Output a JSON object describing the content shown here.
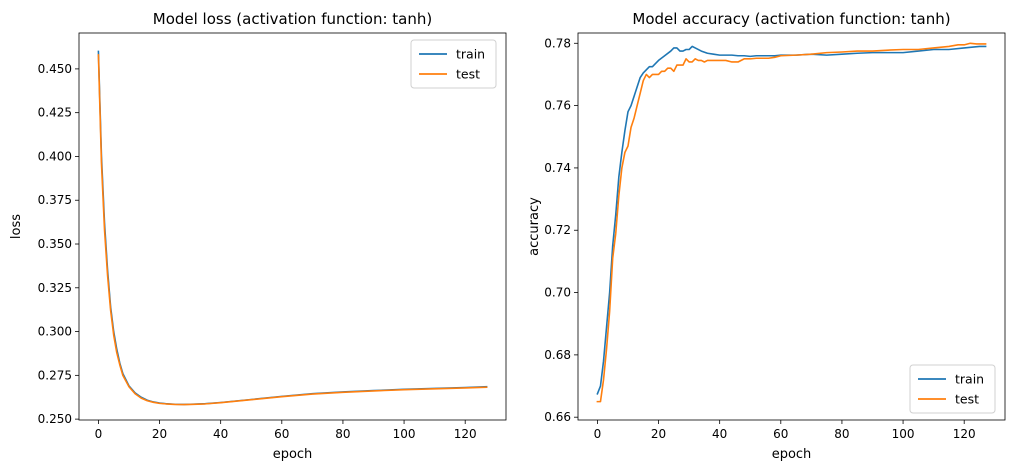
{
  "chart_data": [
    {
      "type": "line",
      "title": "Model loss (activation function: tanh)",
      "xlabel": "epoch",
      "ylabel": "loss",
      "xlim": [
        -6.35,
        133.35
      ],
      "ylim": [
        0.2495,
        0.4705
      ],
      "xticks": [
        0,
        20,
        40,
        60,
        80,
        100,
        120
      ],
      "yticks": [
        0.25,
        0.275,
        0.3,
        0.325,
        0.35,
        0.375,
        0.4,
        0.425,
        0.45
      ],
      "ytick_labels": [
        "0.250",
        "0.275",
        "0.300",
        "0.325",
        "0.350",
        "0.375",
        "0.400",
        "0.425",
        "0.450"
      ],
      "grid": false,
      "legend_position": "top-right",
      "series": [
        {
          "name": "train",
          "color": "#1f77b4",
          "x": [
            0,
            1,
            2,
            3,
            4,
            5,
            6,
            7,
            8,
            10,
            12,
            14,
            16,
            18,
            20,
            22,
            25,
            28,
            30,
            35,
            40,
            50,
            60,
            70,
            80,
            90,
            100,
            110,
            120,
            127
          ],
          "y": [
            0.46,
            0.4,
            0.362,
            0.335,
            0.314,
            0.3,
            0.29,
            0.282,
            0.276,
            0.269,
            0.265,
            0.2625,
            0.2608,
            0.2598,
            0.2592,
            0.2588,
            0.2585,
            0.2584,
            0.2585,
            0.2588,
            0.2595,
            0.2612,
            0.263,
            0.2645,
            0.2655,
            0.2663,
            0.267,
            0.2675,
            0.268,
            0.2685
          ]
        },
        {
          "name": "test",
          "color": "#ff7f0e",
          "x": [
            0,
            1,
            2,
            3,
            4,
            5,
            6,
            7,
            8,
            10,
            12,
            14,
            16,
            18,
            20,
            22,
            25,
            28,
            30,
            35,
            40,
            50,
            60,
            70,
            80,
            90,
            100,
            110,
            120,
            127
          ],
          "y": [
            0.458,
            0.396,
            0.358,
            0.332,
            0.312,
            0.298,
            0.288,
            0.281,
            0.275,
            0.2685,
            0.2645,
            0.262,
            0.2605,
            0.2596,
            0.259,
            0.2587,
            0.2584,
            0.2583,
            0.2584,
            0.2587,
            0.2594,
            0.2611,
            0.2628,
            0.2643,
            0.2653,
            0.2661,
            0.2668,
            0.2673,
            0.2678,
            0.2682
          ]
        }
      ]
    },
    {
      "type": "line",
      "title": "Model accuracy (activation function: tanh)",
      "xlabel": "epoch",
      "ylabel": "accuracy",
      "xlim": [
        -6.35,
        133.35
      ],
      "ylim": [
        0.6591,
        0.7833
      ],
      "xticks": [
        0,
        20,
        40,
        60,
        80,
        100,
        120
      ],
      "yticks": [
        0.66,
        0.68,
        0.7,
        0.72,
        0.74,
        0.76,
        0.78
      ],
      "ytick_labels": [
        "0.66",
        "0.68",
        "0.70",
        "0.72",
        "0.74",
        "0.76",
        "0.78"
      ],
      "grid": false,
      "legend_position": "bottom-right",
      "series": [
        {
          "name": "train",
          "color": "#1f77b4",
          "x": [
            0,
            1,
            2,
            3,
            4,
            5,
            6,
            7,
            8,
            9,
            10,
            11,
            12,
            13,
            14,
            15,
            16,
            17,
            18,
            19,
            20,
            22,
            24,
            25,
            26,
            27,
            28,
            29,
            30,
            31,
            32,
            34,
            36,
            38,
            40,
            42,
            44,
            46,
            48,
            50,
            52,
            54,
            56,
            58,
            60,
            65,
            70,
            75,
            80,
            85,
            90,
            95,
            100,
            105,
            110,
            115,
            120,
            125,
            127
          ],
          "y": [
            0.6675,
            0.67,
            0.678,
            0.689,
            0.7,
            0.715,
            0.725,
            0.737,
            0.745,
            0.752,
            0.758,
            0.76,
            0.763,
            0.766,
            0.769,
            0.7705,
            0.7715,
            0.7725,
            0.7725,
            0.7735,
            0.7745,
            0.776,
            0.7775,
            0.7785,
            0.7785,
            0.7775,
            0.7775,
            0.778,
            0.778,
            0.779,
            0.7785,
            0.7775,
            0.7768,
            0.7765,
            0.7762,
            0.7762,
            0.7762,
            0.776,
            0.776,
            0.7758,
            0.776,
            0.776,
            0.776,
            0.776,
            0.7762,
            0.7762,
            0.7765,
            0.7762,
            0.7765,
            0.7768,
            0.777,
            0.777,
            0.777,
            0.7775,
            0.778,
            0.778,
            0.7785,
            0.779,
            0.779
          ]
        },
        {
          "name": "test",
          "color": "#ff7f0e",
          "x": [
            0,
            1,
            2,
            3,
            4,
            5,
            6,
            7,
            8,
            9,
            10,
            11,
            12,
            13,
            14,
            15,
            16,
            17,
            18,
            19,
            20,
            21,
            22,
            23,
            24,
            25,
            26,
            27,
            28,
            29,
            30,
            31,
            32,
            33,
            34,
            35,
            36,
            38,
            40,
            42,
            44,
            46,
            48,
            50,
            52,
            54,
            56,
            58,
            60,
            65,
            70,
            75,
            80,
            85,
            90,
            95,
            100,
            105,
            110,
            115,
            118,
            120,
            122,
            124,
            127
          ],
          "y": [
            0.665,
            0.665,
            0.672,
            0.682,
            0.694,
            0.711,
            0.719,
            0.731,
            0.74,
            0.745,
            0.747,
            0.753,
            0.756,
            0.76,
            0.764,
            0.768,
            0.77,
            0.769,
            0.77,
            0.77,
            0.77,
            0.771,
            0.771,
            0.772,
            0.772,
            0.771,
            0.773,
            0.773,
            0.773,
            0.775,
            0.774,
            0.774,
            0.775,
            0.7745,
            0.7745,
            0.774,
            0.7745,
            0.7745,
            0.7745,
            0.7745,
            0.774,
            0.774,
            0.775,
            0.775,
            0.7752,
            0.7752,
            0.7752,
            0.7755,
            0.776,
            0.7762,
            0.7765,
            0.777,
            0.7772,
            0.7775,
            0.7775,
            0.7778,
            0.778,
            0.778,
            0.7785,
            0.779,
            0.7795,
            0.7795,
            0.78,
            0.7798,
            0.7798
          ]
        }
      ]
    }
  ]
}
